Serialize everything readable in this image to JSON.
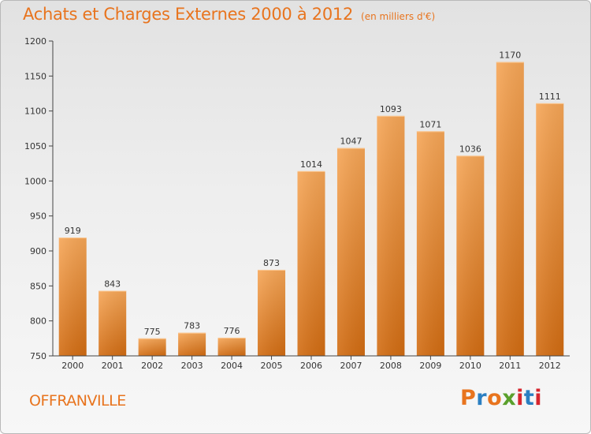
{
  "header": {
    "title": "Achats et Charges Externes 2000 à 2012",
    "subtitle": "(en milliers d'€)"
  },
  "footer": {
    "commune": "OFFRANVILLE",
    "brand": "Proxiti"
  },
  "colors": {
    "bar_light": "#f6a657",
    "bar_dark": "#d26c12",
    "title": "#e8741e"
  },
  "chart_data": {
    "type": "bar",
    "title": "Achats et Charges Externes 2000 à 2012",
    "subtitle": "(en milliers d'€)",
    "categories": [
      "2000",
      "2001",
      "2002",
      "2003",
      "2004",
      "2005",
      "2006",
      "2007",
      "2008",
      "2009",
      "2010",
      "2011",
      "2012"
    ],
    "values": [
      919,
      843,
      775,
      783,
      776,
      873,
      1014,
      1047,
      1093,
      1071,
      1036,
      1170,
      1111
    ],
    "ylim": [
      750,
      1200
    ],
    "yticks": [
      750,
      800,
      850,
      900,
      950,
      1000,
      1050,
      1100,
      1150,
      1200
    ],
    "xlabel": "",
    "ylabel": "",
    "grid": false,
    "legend": "none"
  }
}
